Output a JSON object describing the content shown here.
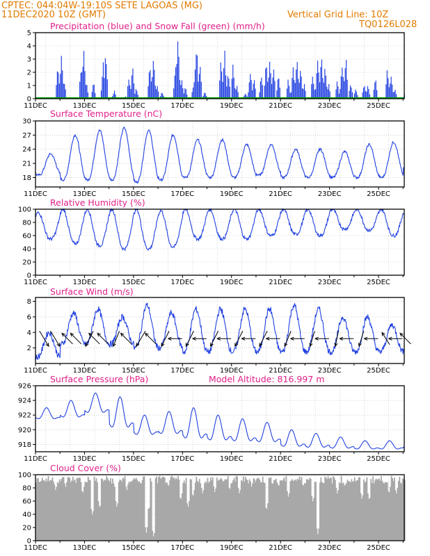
{
  "header": {
    "line1": "CPTEC:   044:04W-19:10S   SETE LAGOAS (MG)",
    "line2": "11DEC2020 10Z (GMT)",
    "right1": "Vertical Grid Line: 10Z",
    "right2": "TQ0126L028"
  },
  "colors": {
    "header": "#e07b00",
    "title": "#e0208a",
    "series": "#2040e0",
    "snow": "#00a000",
    "cloud": "#a8a8a8",
    "arrow": "#000000"
  },
  "x_ticks": [
    "11DEC",
    "13DEC",
    "15DEC",
    "17DEC",
    "19DEC",
    "21DEC",
    "23DEC",
    "25DEC"
  ],
  "chart_data": [
    {
      "type": "bar",
      "title": "Precipitation (blue) and Snow Fall (green) (mm/h)",
      "ylim": [
        0,
        5
      ],
      "yticks": [
        0,
        1,
        2,
        3,
        4,
        5
      ],
      "series": [
        {
          "name": "Precipitation",
          "peaks": [
            {
              "day": 11.9,
              "value": 3.0
            },
            {
              "day": 12.05,
              "value": 4.0
            },
            {
              "day": 12.15,
              "value": 1.6
            },
            {
              "day": 12.85,
              "value": 3.0
            },
            {
              "day": 12.95,
              "value": 4.4
            },
            {
              "day": 13.05,
              "value": 1.5
            },
            {
              "day": 13.35,
              "value": 1.4
            },
            {
              "day": 13.75,
              "value": 3.0
            },
            {
              "day": 13.85,
              "value": 4.2
            },
            {
              "day": 14.2,
              "value": 0.7
            },
            {
              "day": 14.65,
              "value": 0.2
            },
            {
              "day": 14.8,
              "value": 1.8
            },
            {
              "day": 14.95,
              "value": 2.7
            },
            {
              "day": 15.1,
              "value": 1.0
            },
            {
              "day": 15.65,
              "value": 2.8
            },
            {
              "day": 15.8,
              "value": 3.6
            },
            {
              "day": 15.95,
              "value": 1.2
            },
            {
              "day": 16.15,
              "value": 0.6
            },
            {
              "day": 16.7,
              "value": 2.6
            },
            {
              "day": 16.8,
              "value": 5.0
            },
            {
              "day": 16.95,
              "value": 1.8
            },
            {
              "day": 17.1,
              "value": 1.0
            },
            {
              "day": 17.45,
              "value": 1.6
            },
            {
              "day": 17.55,
              "value": 4.7
            },
            {
              "day": 17.7,
              "value": 3.0
            },
            {
              "day": 17.9,
              "value": 0.6
            },
            {
              "day": 18.55,
              "value": 3.2
            },
            {
              "day": 18.7,
              "value": 4.1
            },
            {
              "day": 18.85,
              "value": 2.6
            },
            {
              "day": 19.05,
              "value": 2.9
            },
            {
              "day": 19.2,
              "value": 1.2
            },
            {
              "day": 19.55,
              "value": 0.5
            },
            {
              "day": 19.75,
              "value": 2.5
            },
            {
              "day": 19.9,
              "value": 1.9
            },
            {
              "day": 20.2,
              "value": 2.0
            },
            {
              "day": 20.4,
              "value": 3.0
            },
            {
              "day": 20.55,
              "value": 3.6
            },
            {
              "day": 20.7,
              "value": 3.0
            },
            {
              "day": 20.9,
              "value": 2.1
            },
            {
              "day": 21.3,
              "value": 1.6
            },
            {
              "day": 21.5,
              "value": 2.6
            },
            {
              "day": 21.65,
              "value": 3.3
            },
            {
              "day": 21.8,
              "value": 2.6
            },
            {
              "day": 21.95,
              "value": 1.2
            },
            {
              "day": 22.3,
              "value": 2.1
            },
            {
              "day": 22.5,
              "value": 3.4
            },
            {
              "day": 22.65,
              "value": 3.6
            },
            {
              "day": 22.8,
              "value": 2.9
            },
            {
              "day": 22.95,
              "value": 1.3
            },
            {
              "day": 23.3,
              "value": 1.6
            },
            {
              "day": 23.5,
              "value": 3.1
            },
            {
              "day": 23.65,
              "value": 3.7
            },
            {
              "day": 23.85,
              "value": 1.3
            },
            {
              "day": 24.05,
              "value": 0.9
            },
            {
              "day": 24.4,
              "value": 1.4
            },
            {
              "day": 24.55,
              "value": 1.2
            },
            {
              "day": 24.85,
              "value": 1.9
            },
            {
              "day": 25.35,
              "value": 2.6
            },
            {
              "day": 25.5,
              "value": 2.2
            },
            {
              "day": 25.65,
              "value": 0.9
            },
            {
              "day": 26.1,
              "value": 0.9
            }
          ]
        },
        {
          "name": "Snow Fall",
          "value": 0
        }
      ]
    },
    {
      "type": "line",
      "title": "Surface Temperature (nC)",
      "ylim": [
        16,
        30
      ],
      "yticks": [
        18,
        21,
        24,
        27,
        30
      ],
      "cycle": {
        "start_day": 11.0,
        "period_days": 1.0,
        "phase_day": 0.55
      },
      "daily_max": [
        23.0,
        27.0,
        28.0,
        28.5,
        28.0,
        27.0,
        26.0,
        26.0,
        25.0,
        25.0,
        24.0,
        24.0,
        23.5,
        25.0,
        25.5,
        28.5
      ],
      "daily_min": [
        18.5,
        17.5,
        17.5,
        17.5,
        17.0,
        17.5,
        18.0,
        18.0,
        18.0,
        18.5,
        18.0,
        18.0,
        18.0,
        18.0,
        18.0,
        19.5
      ]
    },
    {
      "type": "line",
      "title": "Relative Humidity (%)",
      "ylim": [
        0,
        100
      ],
      "yticks": [
        0,
        20,
        40,
        60,
        80,
        100
      ],
      "daily_max": [
        95,
        100,
        100,
        100,
        100,
        98,
        100,
        100,
        100,
        100,
        100,
        100,
        100,
        100,
        100,
        100
      ],
      "daily_min": [
        55,
        48,
        45,
        40,
        40,
        43,
        55,
        55,
        55,
        60,
        62,
        60,
        70,
        68,
        60,
        40
      ]
    },
    {
      "type": "line",
      "title": "Surface Wind (m/s)",
      "ylim": [
        0,
        8.5
      ],
      "yticks": [
        2,
        4,
        6,
        8
      ],
      "daily_max": [
        4.0,
        6.5,
        7.0,
        6.0,
        7.5,
        6.5,
        7.0,
        7.0,
        7.0,
        7.0,
        7.5,
        7.0,
        6.0,
        6.0,
        5.0,
        5.0
      ],
      "daily_min": [
        0.8,
        2.5,
        2.5,
        2.5,
        2.0,
        2.0,
        1.5,
        1.5,
        1.5,
        1.5,
        1.5,
        1.5,
        1.5,
        1.5,
        1.5,
        2.0
      ],
      "wind_arrows": [
        {
          "day": 11.35,
          "dx": 0.6,
          "dy": 1.0
        },
        {
          "day": 11.8,
          "dx": 0.6,
          "dy": 1.0
        },
        {
          "day": 12.3,
          "dx": -0.7,
          "dy": -0.7
        },
        {
          "day": 12.65,
          "dx": -0.7,
          "dy": -0.7
        },
        {
          "day": 13.2,
          "dx": -0.5,
          "dy": 1.0
        },
        {
          "day": 13.4,
          "dx": -0.7,
          "dy": -0.7
        },
        {
          "day": 13.75,
          "dx": -0.7,
          "dy": -0.7
        },
        {
          "day": 14.3,
          "dx": -0.4,
          "dy": 1.0
        },
        {
          "day": 14.7,
          "dx": -0.7,
          "dy": -0.7
        },
        {
          "day": 15.3,
          "dx": -0.6,
          "dy": 1.0
        },
        {
          "day": 15.7,
          "dx": -0.7,
          "dy": -0.7
        },
        {
          "day": 16.3,
          "dx": -0.5,
          "dy": 1.0
        },
        {
          "day": 16.7,
          "dx": -0.9,
          "dy": 0.0
        },
        {
          "day": 17.3,
          "dx": -0.5,
          "dy": 1.0
        },
        {
          "day": 17.7,
          "dx": -0.9,
          "dy": 0.0
        },
        {
          "day": 18.3,
          "dx": -0.5,
          "dy": 1.0
        },
        {
          "day": 18.7,
          "dx": -0.9,
          "dy": 0.0
        },
        {
          "day": 19.3,
          "dx": -0.5,
          "dy": 1.0
        },
        {
          "day": 19.7,
          "dx": -0.9,
          "dy": 0.0
        },
        {
          "day": 20.3,
          "dx": -0.5,
          "dy": 1.0
        },
        {
          "day": 20.7,
          "dx": -0.9,
          "dy": 0.0
        },
        {
          "day": 21.3,
          "dx": -0.4,
          "dy": 1.0
        },
        {
          "day": 21.7,
          "dx": -0.9,
          "dy": 0.0
        },
        {
          "day": 22.3,
          "dx": -0.3,
          "dy": 1.0
        },
        {
          "day": 22.7,
          "dx": -0.9,
          "dy": 0.0
        },
        {
          "day": 23.3,
          "dx": -0.2,
          "dy": 1.0
        },
        {
          "day": 23.7,
          "dx": -0.9,
          "dy": 0.0
        },
        {
          "day": 24.3,
          "dx": -0.3,
          "dy": 1.0
        },
        {
          "day": 24.7,
          "dx": -0.9,
          "dy": 0.0
        },
        {
          "day": 25.3,
          "dx": -0.5,
          "dy": -0.8
        },
        {
          "day": 25.7,
          "dx": -0.9,
          "dy": 0.0
        },
        {
          "day": 26.1,
          "dx": -0.7,
          "dy": -0.7
        }
      ]
    },
    {
      "type": "line",
      "title": "Surface Pressure (hPa)",
      "subtitle": "Model Altitude: 816.997 m",
      "ylim": [
        917,
        926
      ],
      "yticks": [
        918,
        920,
        922,
        924,
        926
      ],
      "daily_max": [
        923.0,
        924.0,
        925.0,
        924.5,
        922.0,
        922.5,
        923.0,
        922.0,
        921.5,
        921.0,
        920.0,
        919.5,
        919.0,
        918.5,
        918.5,
        919.0
      ],
      "daily_min": [
        921.0,
        921.0,
        921.5,
        919.0,
        918.5,
        918.5,
        917.5,
        917.5,
        917.5,
        917.5,
        917.0,
        917.0,
        917.0,
        917.0,
        917.0,
        917.0
      ]
    },
    {
      "type": "bar",
      "title": "Cloud Cover (%)",
      "ylim": [
        0,
        100
      ],
      "yticks": [
        0,
        20,
        40,
        60,
        80,
        100
      ],
      "typical_value": 90,
      "dips": [
        {
          "day": 11.8,
          "value": 75
        },
        {
          "day": 12.2,
          "value": 80
        },
        {
          "day": 12.9,
          "value": 70
        },
        {
          "day": 13.3,
          "value": 38
        },
        {
          "day": 13.6,
          "value": 48
        },
        {
          "day": 14.2,
          "value": 80
        },
        {
          "day": 14.3,
          "value": 50
        },
        {
          "day": 14.7,
          "value": 75
        },
        {
          "day": 15.3,
          "value": 85
        },
        {
          "day": 15.5,
          "value": 12
        },
        {
          "day": 15.6,
          "value": 45
        },
        {
          "day": 15.8,
          "value": 5
        },
        {
          "day": 16.4,
          "value": 80
        },
        {
          "day": 16.9,
          "value": 60
        },
        {
          "day": 17.2,
          "value": 50
        },
        {
          "day": 17.4,
          "value": 65
        },
        {
          "day": 17.8,
          "value": 70
        },
        {
          "day": 18.3,
          "value": 72
        },
        {
          "day": 18.9,
          "value": 75
        },
        {
          "day": 19.3,
          "value": 70
        },
        {
          "day": 19.8,
          "value": 80
        },
        {
          "day": 20.4,
          "value": 45
        },
        {
          "day": 20.9,
          "value": 80
        },
        {
          "day": 21.3,
          "value": 65
        },
        {
          "day": 21.9,
          "value": 80
        },
        {
          "day": 22.3,
          "value": 58
        },
        {
          "day": 22.5,
          "value": 10
        },
        {
          "day": 23.3,
          "value": 70
        },
        {
          "day": 23.6,
          "value": 80
        },
        {
          "day": 24.3,
          "value": 62
        },
        {
          "day": 24.6,
          "value": 60
        },
        {
          "day": 25.4,
          "value": 70
        },
        {
          "day": 25.7,
          "value": 70
        }
      ]
    }
  ]
}
